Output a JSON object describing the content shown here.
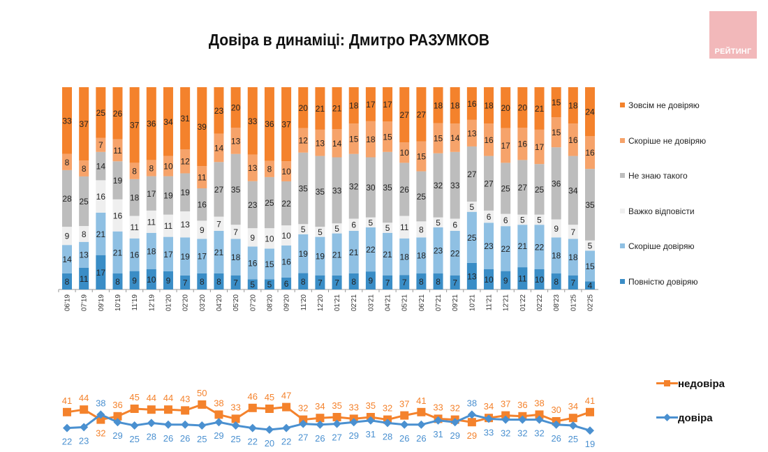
{
  "header": {
    "title": "Довіра в динаміці: Дмитро РАЗУМКОВ",
    "logo_text": "РЕЙТИНГ"
  },
  "colors": {
    "fully_distrust": "#f4822c",
    "rather_distrust": "#f6a36a",
    "dont_know": "#bdbdbd",
    "hard_to_say": "#efefef",
    "rather_trust": "#8fc0e3",
    "fully_trust": "#3a8dc6",
    "distrust_line": "#f4822c",
    "trust_line": "#4a90d0"
  },
  "chart_data": [
    {
      "type": "bar",
      "stacked": true,
      "title": "Довіра в динаміці: Дмитро РАЗУМКОВ",
      "categories": [
        "06'19",
        "07'19",
        "09'19",
        "10'19",
        "11'19",
        "12'19",
        "01'20",
        "02'20",
        "03'20",
        "04'20",
        "05'20",
        "07'20",
        "08'20",
        "09'20",
        "11'20",
        "12'20",
        "01'21",
        "02'21",
        "03'21",
        "04'21",
        "05'21",
        "06'21",
        "07'21",
        "09'21",
        "10'21",
        "11'21",
        "12'21",
        "01'22",
        "02'22",
        "08'23",
        "01'25",
        "02'25"
      ],
      "series": [
        {
          "name": "Повністю довіряю",
          "color_key": "fully_trust",
          "values": [
            8,
            11,
            17,
            8,
            9,
            10,
            9,
            7,
            8,
            8,
            7,
            5,
            5,
            6,
            8,
            7,
            7,
            8,
            9,
            7,
            7,
            8,
            8,
            7,
            13,
            10,
            9,
            11,
            10,
            8,
            7,
            4
          ]
        },
        {
          "name": "Скоріше довіряю",
          "color_key": "rather_trust",
          "values": [
            14,
            13,
            21,
            21,
            16,
            18,
            17,
            19,
            17,
            21,
            18,
            16,
            15,
            16,
            19,
            19,
            21,
            21,
            22,
            21,
            18,
            18,
            23,
            22,
            25,
            23,
            22,
            21,
            22,
            18,
            18,
            15
          ]
        },
        {
          "name": "Важко відповісти",
          "color_key": "hard_to_say",
          "values": [
            9,
            8,
            16,
            16,
            11,
            11,
            11,
            13,
            9,
            7,
            7,
            9,
            10,
            10,
            5,
            5,
            5,
            6,
            5,
            5,
            11,
            8,
            5,
            6,
            5,
            6,
            6,
            5,
            5,
            9,
            7,
            5
          ]
        },
        {
          "name": "Не знаю такого",
          "color_key": "dont_know",
          "values": [
            28,
            25,
            14,
            19,
            18,
            17,
            19,
            19,
            16,
            27,
            35,
            23,
            25,
            22,
            35,
            35,
            33,
            32,
            30,
            35,
            26,
            25,
            32,
            33,
            27,
            27,
            25,
            27,
            25,
            36,
            34,
            35
          ]
        },
        {
          "name": "Скоріше не довіряю",
          "color_key": "rather_distrust",
          "values": [
            8,
            8,
            7,
            11,
            8,
            8,
            10,
            12,
            11,
            14,
            13,
            13,
            8,
            10,
            12,
            13,
            14,
            15,
            18,
            15,
            10,
            15,
            15,
            14,
            13,
            16,
            17,
            16,
            17,
            15,
            16,
            16
          ]
        },
        {
          "name": "Зовсім не довіряю",
          "color_key": "fully_distrust",
          "values": [
            33,
            37,
            25,
            26,
            37,
            36,
            34,
            31,
            39,
            23,
            20,
            33,
            36,
            37,
            20,
            21,
            21,
            18,
            17,
            17,
            27,
            27,
            18,
            18,
            16,
            18,
            20,
            20,
            21,
            15,
            18,
            24
          ]
        }
      ],
      "legend_order": [
        "Зовсім не довіряю",
        "Скоріше не довіряю",
        "Не знаю такого",
        "Важко відповісти",
        "Скоріше довіряю",
        "Повністю довіряю"
      ],
      "legend_position": "right",
      "xlabel": "",
      "ylabel": "",
      "grid": false
    },
    {
      "type": "line",
      "categories": [
        "06'19",
        "07'19",
        "09'19",
        "10'19",
        "11'19",
        "12'19",
        "01'20",
        "02'20",
        "03'20",
        "04'20",
        "05'20",
        "07'20",
        "08'20",
        "09'20",
        "11'20",
        "12'20",
        "01'21",
        "02'21",
        "03'21",
        "04'21",
        "05'21",
        "06'21",
        "07'21",
        "09'21",
        "10'21",
        "11'21",
        "12'21",
        "01'22",
        "02'22",
        "08'23",
        "01'25",
        "02'25"
      ],
      "series": [
        {
          "name": "недовіра",
          "color_key": "distrust_line",
          "marker": "square",
          "values": [
            41,
            44,
            32,
            36,
            45,
            44,
            44,
            43,
            50,
            38,
            33,
            46,
            45,
            47,
            32,
            34,
            35,
            33,
            35,
            32,
            37,
            41,
            33,
            32,
            29,
            34,
            37,
            36,
            38,
            30,
            34,
            41
          ]
        },
        {
          "name": "довіра",
          "color_key": "trust_line",
          "marker": "diamond",
          "values": [
            22,
            23,
            38,
            29,
            25,
            28,
            26,
            26,
            25,
            29,
            25,
            22,
            20,
            22,
            27,
            26,
            27,
            29,
            31,
            28,
            26,
            26,
            31,
            29,
            38,
            33,
            32,
            32,
            32,
            26,
            25,
            19
          ]
        }
      ],
      "legend_position": "right",
      "grid": false
    }
  ]
}
